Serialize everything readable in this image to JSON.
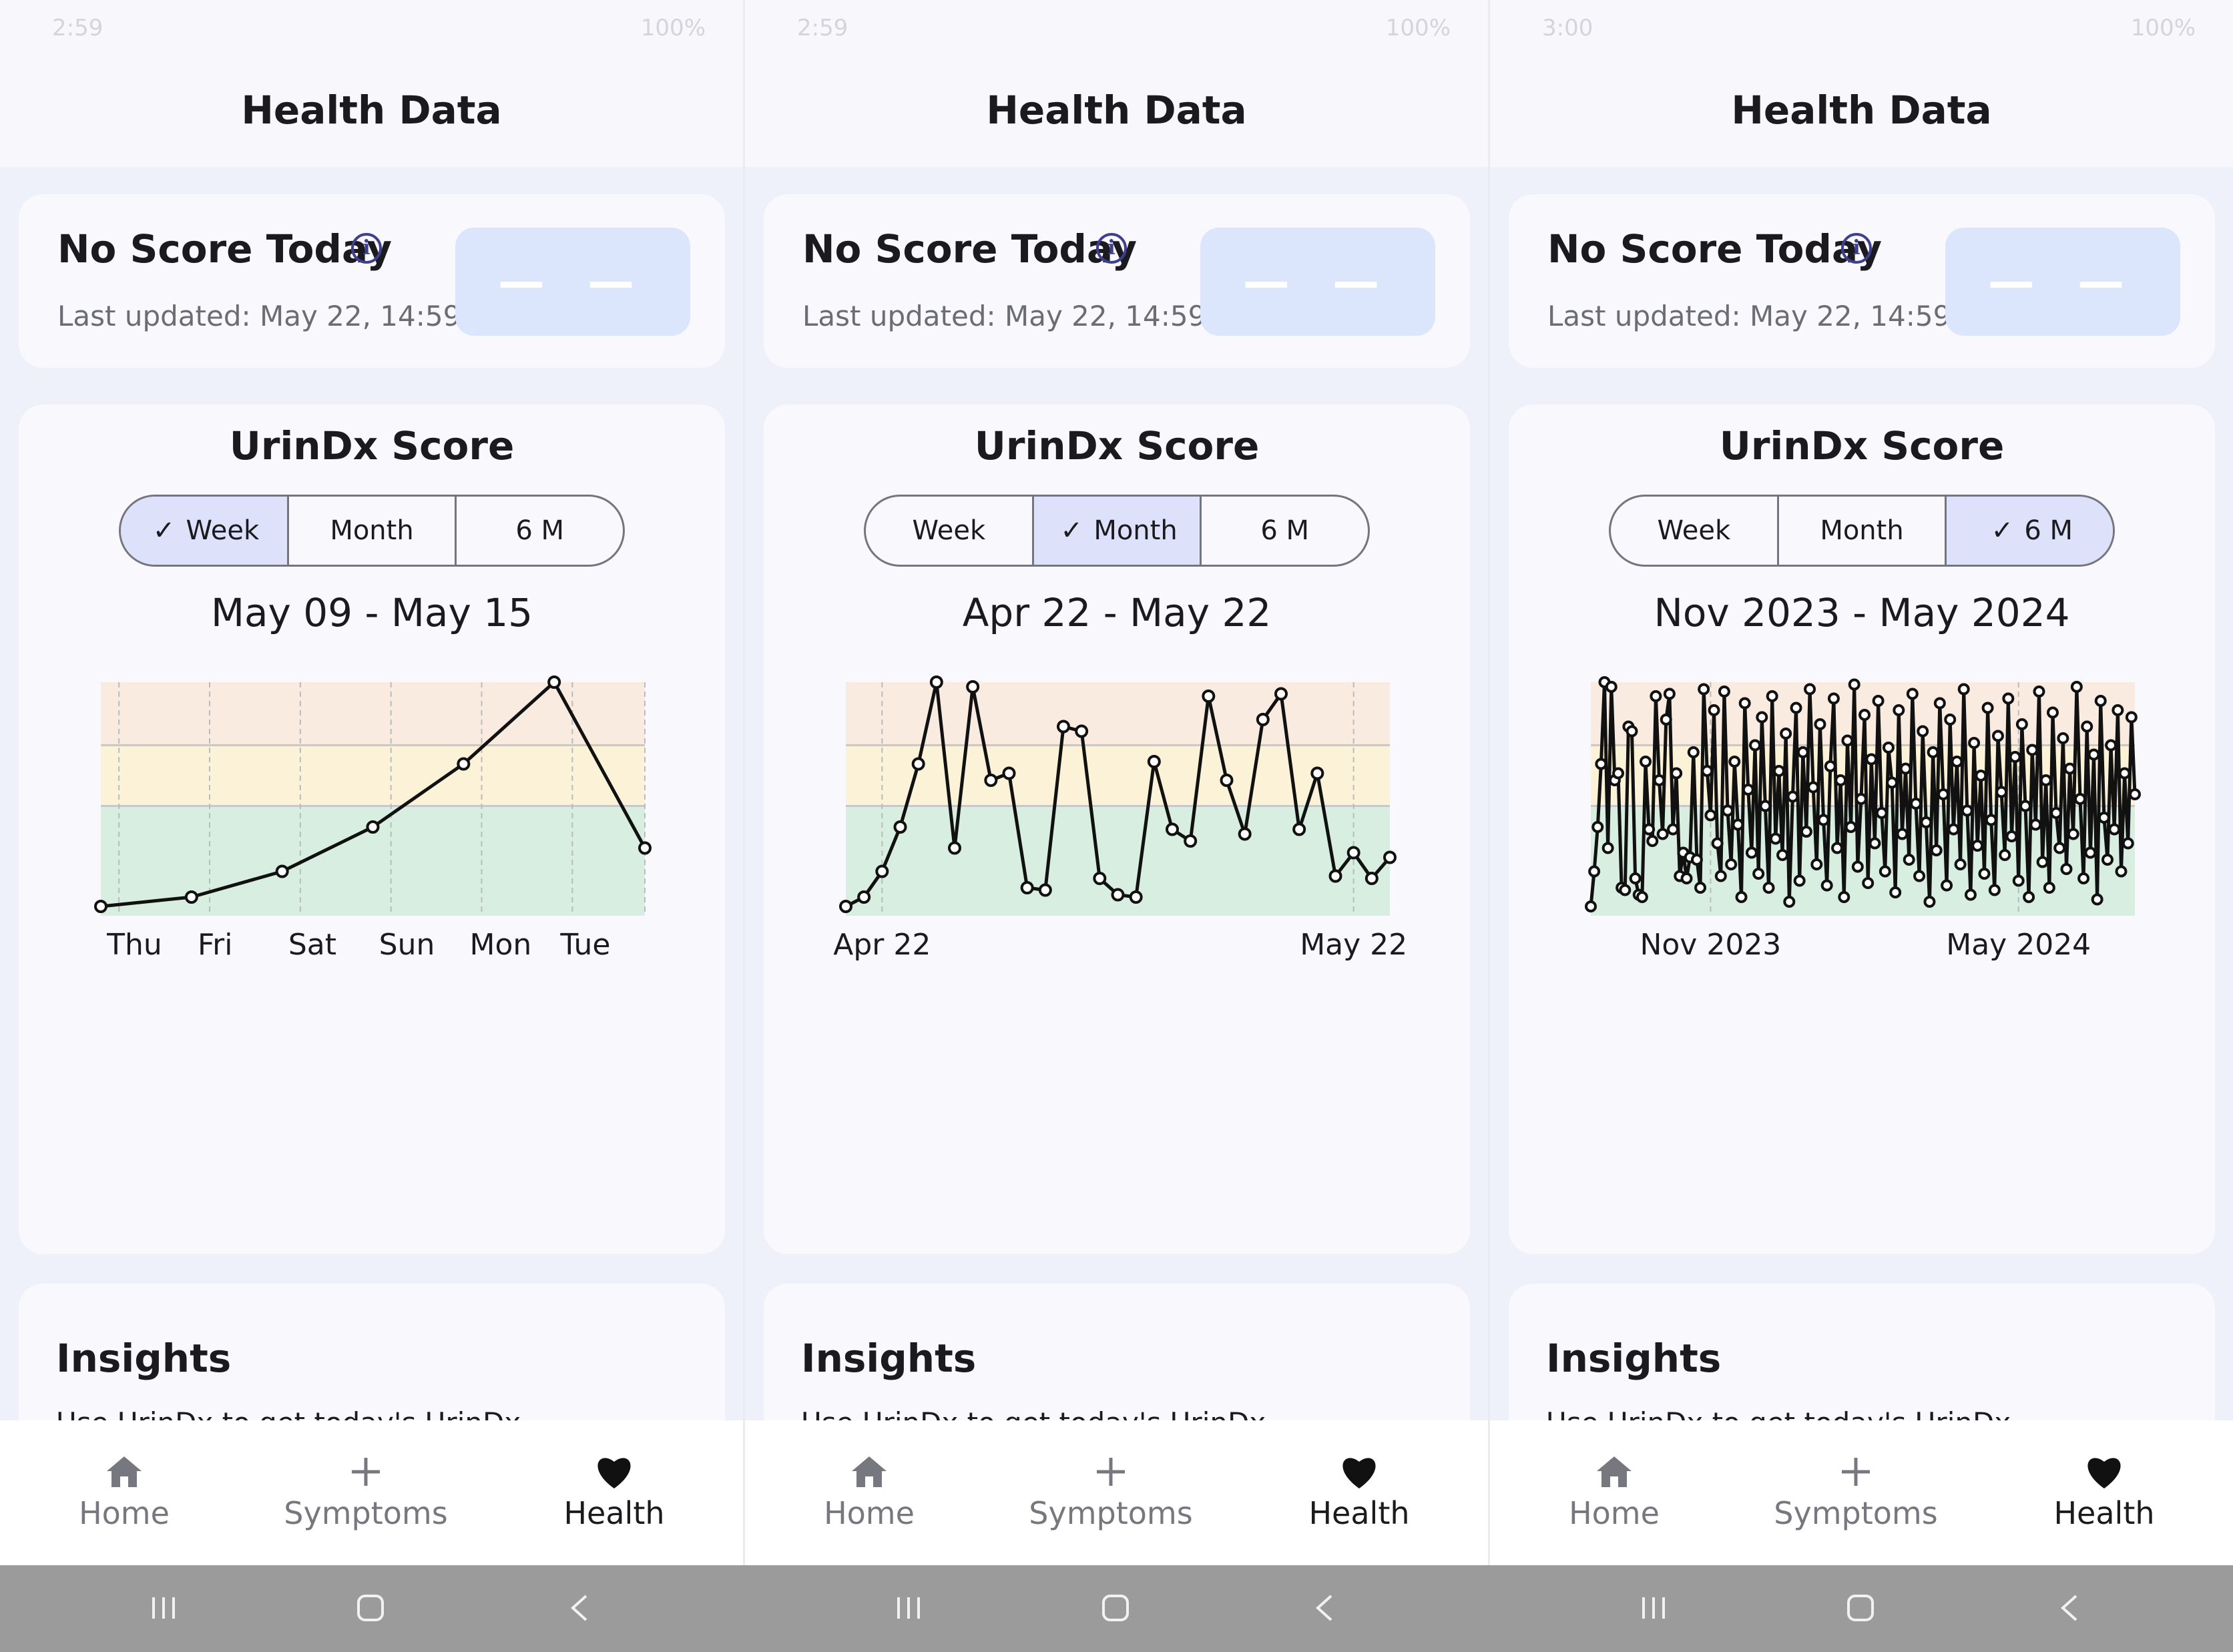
{
  "colors": {
    "zone_high": "#f9ebe0",
    "zone_mid": "#fcf2d7",
    "zone_low": "#d8eee1",
    "line": "#111111",
    "accent": "#dde1f9"
  },
  "panels": [
    {
      "status": {
        "left": "2:59",
        "right": "100%"
      },
      "header": {
        "title": "Health Data"
      },
      "score_card": {
        "title": "No Score Today",
        "info_icon": "info-icon",
        "updated": "Last updated: May 22, 14:59",
        "value": "— —"
      },
      "chart_card": {
        "title": "UrinDx Score",
        "tabs": [
          {
            "label": "Week",
            "active": true
          },
          {
            "label": "Month",
            "active": false
          },
          {
            "label": "6 M",
            "active": false
          }
        ],
        "range": "May 09 - May 15"
      },
      "insights": {
        "title": "Insights",
        "body": "Use UrinDx to get today's UrinDx"
      },
      "nav": [
        {
          "label": "Home",
          "icon": "home-icon",
          "active": false
        },
        {
          "label": "Symptoms",
          "icon": "plus-icon",
          "active": false
        },
        {
          "label": "Health",
          "icon": "heart-icon",
          "active": true
        }
      ]
    },
    {
      "status": {
        "left": "2:59",
        "right": "100%"
      },
      "header": {
        "title": "Health Data"
      },
      "score_card": {
        "title": "No Score Today",
        "info_icon": "info-icon",
        "updated": "Last updated: May 22, 14:59",
        "value": "— —"
      },
      "chart_card": {
        "title": "UrinDx Score",
        "tabs": [
          {
            "label": "Week",
            "active": false
          },
          {
            "label": "Month",
            "active": true
          },
          {
            "label": "6 M",
            "active": false
          }
        ],
        "range": "Apr 22 - May 22"
      },
      "insights": {
        "title": "Insights",
        "body": "Use UrinDx to get today's UrinDx"
      },
      "nav": [
        {
          "label": "Home",
          "icon": "home-icon",
          "active": false
        },
        {
          "label": "Symptoms",
          "icon": "plus-icon",
          "active": false
        },
        {
          "label": "Health",
          "icon": "heart-icon",
          "active": true
        }
      ]
    },
    {
      "status": {
        "left": "3:00",
        "right": "100%"
      },
      "header": {
        "title": "Health Data"
      },
      "score_card": {
        "title": "No Score Today",
        "info_icon": "info-icon",
        "updated": "Last updated: May 22, 14:59",
        "value": "— —"
      },
      "chart_card": {
        "title": "UrinDx Score",
        "tabs": [
          {
            "label": "Week",
            "active": false
          },
          {
            "label": "Month",
            "active": false
          },
          {
            "label": "6 M",
            "active": true
          }
        ],
        "range": "Nov 2023 - May 2024"
      },
      "insights": {
        "title": "Insights",
        "body": "Use UrinDx to get today's UrinDx"
      },
      "nav": [
        {
          "label": "Home",
          "icon": "home-icon",
          "active": false
        },
        {
          "label": "Symptoms",
          "icon": "plus-icon",
          "active": false
        },
        {
          "label": "Health",
          "icon": "heart-icon",
          "active": true
        }
      ]
    }
  ],
  "chart_data": [
    {
      "type": "line",
      "title": "",
      "ylim": [
        0,
        100
      ],
      "zones": [
        0,
        47,
        73,
        100
      ],
      "x": [
        0,
        1,
        2,
        3,
        4,
        5,
        6
      ],
      "y": [
        4,
        8,
        19,
        38,
        65,
        100,
        29
      ],
      "tick_labels": [
        "Thu",
        "Fri",
        "Sat",
        "Sun",
        "Mon",
        "Tue"
      ],
      "tick_positions": [
        0.2,
        1.2,
        2.2,
        3.2,
        4.2,
        5.2
      ],
      "xlim": [
        0,
        6
      ]
    },
    {
      "type": "line",
      "title": "",
      "ylim": [
        0,
        100
      ],
      "zones": [
        0,
        47,
        73,
        100
      ],
      "x": [
        0,
        1,
        2,
        3,
        4,
        5,
        6,
        7,
        8,
        9,
        10,
        11,
        12,
        13,
        14,
        15,
        16,
        17,
        18,
        19,
        20,
        21,
        22,
        23,
        24,
        25,
        26,
        27,
        28,
        29,
        30
      ],
      "y": [
        4,
        8,
        19,
        38,
        65,
        100,
        29,
        98,
        58,
        61,
        12,
        11,
        81,
        79,
        16,
        9,
        8,
        66,
        37,
        32,
        94,
        58,
        35,
        84,
        95,
        37,
        61,
        17,
        27,
        16,
        25
      ],
      "tick_labels": [
        "Apr 22",
        "May 22"
      ],
      "tick_positions": [
        2,
        28
      ],
      "xlim": [
        0,
        30
      ]
    },
    {
      "type": "line",
      "title": "",
      "ylim": [
        0,
        100
      ],
      "zones": [
        0,
        47,
        73,
        100
      ],
      "x": [
        0,
        1,
        2,
        3,
        4,
        5,
        6,
        7,
        8,
        9,
        10,
        11,
        12,
        13,
        14,
        15,
        16,
        17,
        18,
        19,
        20,
        21,
        22,
        23,
        24,
        25,
        26,
        27,
        28,
        29,
        30,
        31,
        32,
        33,
        34,
        35,
        36,
        37,
        38,
        39,
        40,
        41,
        42,
        43,
        44,
        45,
        46,
        47,
        48,
        49,
        50,
        51,
        52,
        53,
        54,
        55,
        56,
        57,
        58,
        59,
        60,
        61,
        62,
        63,
        64,
        65,
        66,
        67,
        68,
        69,
        70,
        71,
        72,
        73,
        74,
        75,
        76,
        77,
        78,
        79,
        80,
        81,
        82,
        83,
        84,
        85,
        86,
        87,
        88,
        89,
        90,
        91,
        92,
        93,
        94,
        95,
        96,
        97,
        98,
        99,
        100,
        101,
        102,
        103,
        104,
        105,
        106,
        107,
        108,
        109,
        110,
        111,
        112,
        113,
        114,
        115,
        116,
        117,
        118,
        119,
        120,
        121,
        122,
        123,
        124,
        125,
        126,
        127,
        128,
        129,
        130,
        131,
        132,
        133,
        134,
        135,
        136,
        137,
        138,
        139,
        140,
        141,
        142,
        143,
        144,
        145,
        146,
        147,
        148,
        149,
        150,
        151,
        152,
        153,
        154,
        155,
        156,
        157,
        158,
        159
      ],
      "y": [
        4,
        19,
        38,
        65,
        100,
        29,
        98,
        58,
        61,
        12,
        11,
        81,
        79,
        16,
        9,
        8,
        66,
        37,
        32,
        94,
        58,
        35,
        84,
        95,
        37,
        61,
        17,
        27,
        16,
        25,
        70,
        24,
        12,
        97,
        62,
        43,
        88,
        31,
        17,
        96,
        45,
        22,
        66,
        39,
        8,
        91,
        54,
        27,
        73,
        18,
        85,
        47,
        12,
        94,
        33,
        62,
        26,
        78,
        6,
        51,
        89,
        15,
        70,
        36,
        97,
        55,
        22,
        82,
        41,
        13,
        64,
        93,
        29,
        58,
        8,
        75,
        38,
        99,
        21,
        50,
        86,
        14,
        67,
        31,
        92,
        44,
        19,
        72,
        57,
        10,
        88,
        35,
        63,
        24,
        95,
        48,
        17,
        79,
        40,
        6,
        70,
        28,
        91,
        52,
        13,
        84,
        37,
        66,
        22,
        97,
        45,
        9,
        74,
        30,
        60,
        18,
        89,
        41,
        11,
        77,
        53,
        26,
        93,
        34,
        68,
        15,
        82,
        47,
        8,
        71,
        39,
        96,
        23,
        58,
        12,
        87,
        44,
        29,
        76,
        20,
        63,
        35,
        98,
        50,
        16,
        81,
        27,
        69,
        7,
        92,
        42,
        24,
        73,
        37,
        88,
        19,
        61,
        31,
        85,
        52
      ],
      "tick_labels": [
        "Nov 2023",
        "May 2024"
      ],
      "tick_positions": [
        35,
        125
      ],
      "xlim": [
        0,
        159
      ]
    }
  ],
  "sysbar": {
    "recent": "recents-icon",
    "home": "home-square-icon",
    "back": "back-icon"
  }
}
